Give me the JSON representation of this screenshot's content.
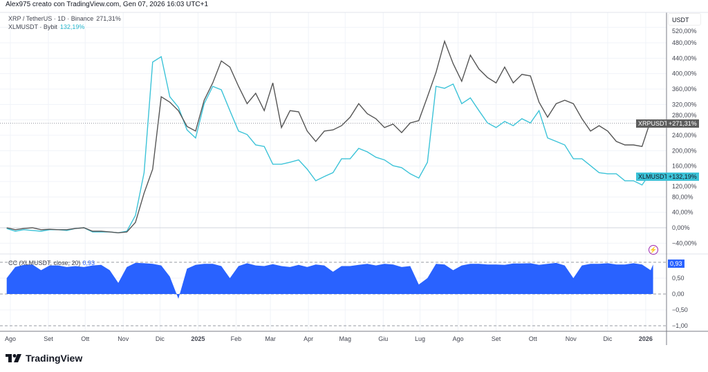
{
  "header": {
    "attribution": "Alex975 creato con TradingView.com, Gen 07, 2026 16:03 UTC+1"
  },
  "legend": {
    "series1": {
      "label": "XRP / TetherUS · 1D · Binance",
      "value": "271,31%"
    },
    "series2": {
      "label": "XLMUSDT · Bybit",
      "value": "132,19%"
    }
  },
  "indicator": {
    "label": "CC (XLMUSDT, close, 20)",
    "value": "0,93"
  },
  "price_axis": {
    "unit": "USDT",
    "ticks": [
      "520,00%",
      "480,00%",
      "440,00%",
      "400,00%",
      "360,00%",
      "320,00%",
      "280,00%",
      "240,00%",
      "200,00%",
      "160,00%",
      "120,00%",
      "80,00%",
      "40,00%",
      "0,00%",
      "−40,00%"
    ],
    "tick_values": [
      520,
      480,
      440,
      400,
      360,
      320,
      280,
      240,
      200,
      160,
      120,
      80,
      40,
      0,
      -40
    ]
  },
  "indicator_axis": {
    "ticks": [
      "0,50",
      "0,00",
      "−0,50",
      "−1,00"
    ],
    "tick_values": [
      0.5,
      0,
      -0.5,
      -1
    ]
  },
  "time_axis": {
    "labels": [
      "Ago",
      "Set",
      "Ott",
      "Nov",
      "Dic",
      "2025",
      "Feb",
      "Mar",
      "Apr",
      "Mag",
      "Giu",
      "Lug",
      "Ago",
      "Set",
      "Ott",
      "Nov",
      "Dic",
      "2026"
    ],
    "dates": [
      "2024-08-01",
      "2024-09-01",
      "2024-10-01",
      "2024-11-01",
      "2024-12-01",
      "2025-01-01",
      "2025-02-01",
      "2025-03-01",
      "2025-04-01",
      "2025-05-01",
      "2025-06-01",
      "2025-07-01",
      "2025-08-01",
      "2025-09-01",
      "2025-10-01",
      "2025-11-01",
      "2025-12-01",
      "2026-01-01"
    ],
    "bold": [
      "2025",
      "2026"
    ]
  },
  "tags": {
    "xrp": {
      "name": "XRPUSDT",
      "value": "+271,31%"
    },
    "xlm": {
      "name": "XLMUSDT",
      "value": "+132,19%"
    },
    "cc": {
      "value": "0,93"
    }
  },
  "brand": {
    "name": "TradingView"
  },
  "colors": {
    "xrp": "#555555",
    "xlm": "#3cc3d8",
    "cc": "#2962ff",
    "alert": "#9c27b0"
  },
  "chart_data": {
    "type": "line",
    "x": [
      "2024-07-29",
      "2024-08-05",
      "2024-08-12",
      "2024-08-19",
      "2024-08-26",
      "2024-09-02",
      "2024-09-09",
      "2024-09-16",
      "2024-09-23",
      "2024-09-30",
      "2024-10-07",
      "2024-10-14",
      "2024-10-21",
      "2024-10-28",
      "2024-11-04",
      "2024-11-11",
      "2024-11-18",
      "2024-11-25",
      "2024-12-02",
      "2024-12-09",
      "2024-12-16",
      "2024-12-23",
      "2024-12-30",
      "2025-01-06",
      "2025-01-13",
      "2025-01-20",
      "2025-01-27",
      "2025-02-03",
      "2025-02-10",
      "2025-02-17",
      "2025-02-24",
      "2025-03-03",
      "2025-03-10",
      "2025-03-17",
      "2025-03-24",
      "2025-03-31",
      "2025-04-07",
      "2025-04-14",
      "2025-04-21",
      "2025-04-28",
      "2025-05-05",
      "2025-05-12",
      "2025-05-19",
      "2025-05-26",
      "2025-06-02",
      "2025-06-09",
      "2025-06-16",
      "2025-06-23",
      "2025-06-30",
      "2025-07-07",
      "2025-07-14",
      "2025-07-21",
      "2025-07-28",
      "2025-08-04",
      "2025-08-11",
      "2025-08-18",
      "2025-08-25",
      "2025-09-01",
      "2025-09-08",
      "2025-09-15",
      "2025-09-22",
      "2025-09-29",
      "2025-10-06",
      "2025-10-13",
      "2025-10-20",
      "2025-10-27",
      "2025-11-03",
      "2025-11-10",
      "2025-11-17",
      "2025-11-24",
      "2025-12-01",
      "2025-12-08",
      "2025-12-15",
      "2025-12-22",
      "2025-12-29",
      "2026-01-05",
      "2026-01-07"
    ],
    "series": [
      {
        "name": "XRPUSDT",
        "panel": "main",
        "values": [
          0,
          -5,
          -2,
          0,
          -5,
          -4,
          -5,
          -5,
          -2,
          0,
          -9,
          -9,
          -11,
          -13,
          -11,
          14,
          90,
          152,
          340,
          326,
          304,
          263,
          251,
          331,
          376,
          433,
          417,
          367,
          322,
          349,
          304,
          376,
          260,
          304,
          301,
          251,
          224,
          251,
          254,
          265,
          287,
          322,
          296,
          283,
          260,
          269,
          247,
          272,
          278,
          340,
          403,
          484,
          426,
          380,
          448,
          412,
          390,
          376,
          417,
          376,
          398,
          394,
          326,
          287,
          322,
          331,
          322,
          283,
          251,
          265,
          251,
          224,
          215,
          215,
          211,
          278,
          271.31
        ]
      },
      {
        "name": "XLMUSDT",
        "panel": "main",
        "values": [
          -2,
          -9,
          -5,
          -7,
          -9,
          -5,
          -5,
          -7,
          -2,
          0,
          -11,
          -11,
          -11,
          -13,
          -9,
          32,
          143,
          430,
          444,
          340,
          313,
          254,
          233,
          322,
          367,
          358,
          304,
          251,
          242,
          215,
          211,
          165,
          165,
          170,
          176,
          152,
          122,
          133,
          143,
          179,
          179,
          206,
          197,
          183,
          176,
          161,
          156,
          140,
          129,
          170,
          367,
          362,
          373,
          322,
          337,
          304,
          272,
          260,
          276,
          265,
          283,
          272,
          304,
          233,
          224,
          215,
          179,
          179,
          161,
          143,
          140,
          140,
          122,
          122,
          111,
          143,
          132.19
        ]
      },
      {
        "name": "CC (XLMUSDT, close, 20)",
        "panel": "indicator",
        "values": [
          0.5,
          0.85,
          0.92,
          0.93,
          0.75,
          0.9,
          0.9,
          0.85,
          0.88,
          0.85,
          0.9,
          0.92,
          0.75,
          0.35,
          0.85,
          0.98,
          0.97,
          0.95,
          0.9,
          0.55,
          -0.15,
          0.8,
          0.92,
          0.95,
          0.95,
          0.88,
          0.5,
          0.88,
          0.97,
          0.9,
          0.88,
          0.94,
          0.88,
          0.85,
          0.92,
          0.85,
          0.93,
          0.9,
          0.7,
          0.88,
          0.88,
          0.92,
          0.95,
          0.9,
          0.95,
          0.93,
          0.85,
          0.88,
          0.3,
          0.5,
          0.95,
          0.93,
          0.75,
          0.9,
          0.95,
          0.95,
          0.93,
          0.93,
          0.92,
          0.96,
          0.96,
          0.97,
          0.92,
          0.95,
          0.98,
          0.9,
          0.5,
          0.9,
          0.95,
          0.95,
          0.97,
          0.93,
          0.93,
          0.97,
          0.93,
          0.75,
          0.93
        ]
      }
    ],
    "ylim_main": [
      -60,
      540
    ],
    "ylim_indicator": [
      -1.1,
      1.1
    ],
    "indicator_levels": [
      1,
      0,
      -1
    ],
    "grid": true
  }
}
